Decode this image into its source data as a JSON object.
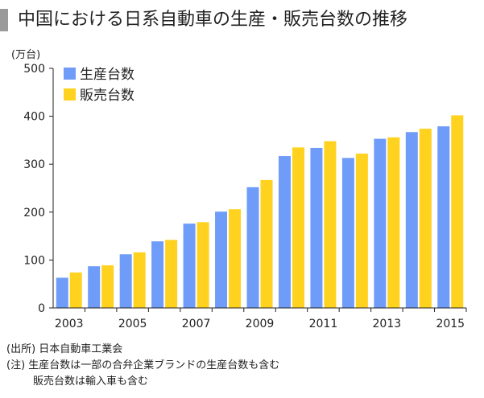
{
  "title": "中国における日系自動車の生産・販売台数の推移",
  "unit_label": "(万台)",
  "source": "(出所) 日本自動車工業会",
  "notes": [
    "(注) 生産台数は一部の合弁企業ブランドの生産台数も含む",
    "販売台数は輸入車も含む"
  ],
  "colors": {
    "production": "#6f9cf8",
    "sales": "#ffd21f",
    "title_mark": "#9a9a9a"
  },
  "chart_data": {
    "type": "bar",
    "categories": [
      "2003",
      "2004",
      "2005",
      "2006",
      "2007",
      "2008",
      "2009",
      "2010",
      "2011",
      "2012",
      "2013",
      "2014",
      "2015"
    ],
    "x_tick_labels": [
      "2003",
      "",
      "2005",
      "",
      "2007",
      "",
      "2009",
      "",
      "2011",
      "",
      "2013",
      "",
      "2015"
    ],
    "series": [
      {
        "name": "生産台数",
        "values": [
          63,
          87,
          112,
          139,
          176,
          201,
          252,
          317,
          334,
          313,
          353,
          367,
          379
        ]
      },
      {
        "name": "販売台数",
        "values": [
          74,
          89,
          116,
          142,
          179,
          206,
          267,
          335,
          348,
          322,
          356,
          374,
          402
        ]
      }
    ],
    "ylabel": "(万台)",
    "xlabel": "",
    "ylim": [
      0,
      500
    ],
    "yticks": [
      0,
      100,
      200,
      300,
      400,
      500
    ],
    "legend_position": "top-left",
    "grid": false
  }
}
